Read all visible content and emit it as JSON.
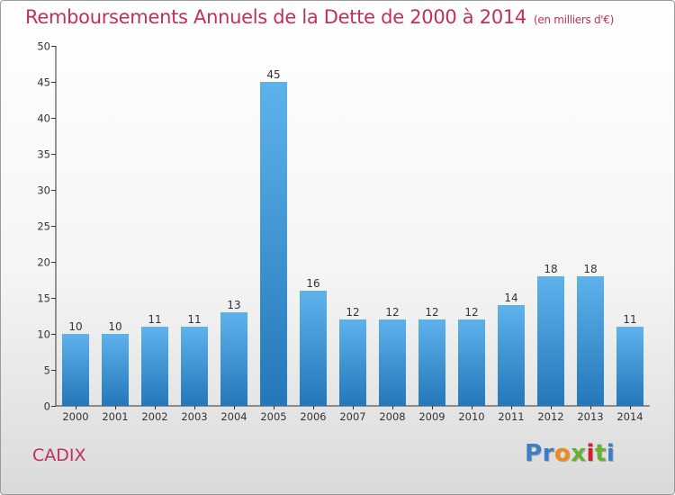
{
  "title": "Remboursements Annuels de la Dette de 2000 à 2014",
  "subtitle": "(en milliers d'€)",
  "commune": "CADIX",
  "logo": {
    "text": "Proxiti",
    "colors": [
      "#3a7fc6",
      "#3a7fc6",
      "#f08a1a",
      "#68b030",
      "#d0202a",
      "#68b030"
    ]
  },
  "colors": {
    "title": "#c0305a",
    "bar_light": "#5eb2ec",
    "bar_dark": "#2577b8"
  },
  "chart_data": {
    "type": "bar",
    "categories": [
      "2000",
      "2001",
      "2002",
      "2003",
      "2004",
      "2005",
      "2006",
      "2007",
      "2008",
      "2009",
      "2010",
      "2011",
      "2012",
      "2013",
      "2014"
    ],
    "values": [
      10,
      10,
      11,
      11,
      13,
      45,
      16,
      12,
      12,
      12,
      12,
      14,
      18,
      18,
      11
    ],
    "title": "Remboursements Annuels de la Dette de 2000 à 2014",
    "xlabel": "",
    "ylabel": "",
    "ylim": [
      0,
      50
    ],
    "yticks": [
      0,
      5,
      10,
      15,
      20,
      25,
      30,
      35,
      40,
      45,
      50
    ],
    "grid": false,
    "data_labels": true
  }
}
